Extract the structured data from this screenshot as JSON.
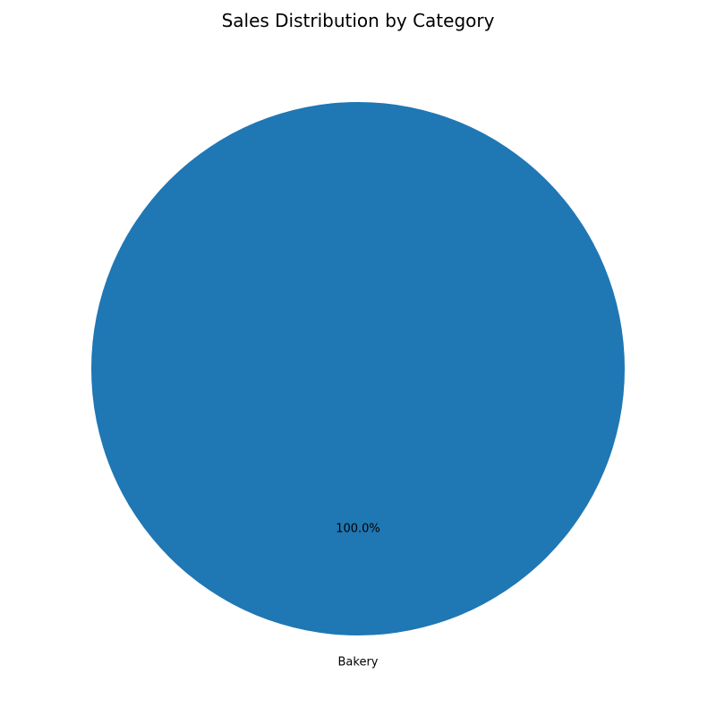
{
  "chart_data": {
    "type": "pie",
    "title": "Sales Distribution by Category",
    "slices": [
      {
        "label": "Bakery",
        "value": 100.0,
        "pct_label": "100.0%",
        "color": "#1f77b4"
      }
    ],
    "legend": "none"
  }
}
